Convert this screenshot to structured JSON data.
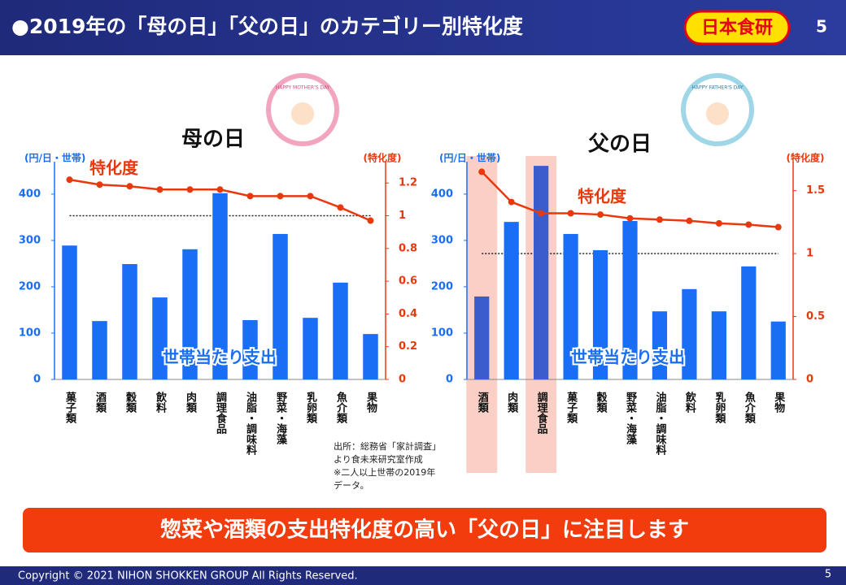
{
  "slide": {
    "title": "●2019年の「母の日」「父の日」のカテゴリー別特化度",
    "logo": "日本食研",
    "page": 5,
    "banner": "惣菜や酒類の支出特化度の高い「父の日」に注目します",
    "source": [
      "出所：総務省「家計調査」",
      "より食未来研究室作成",
      "※二人以上世帯の2019年",
      "データ。"
    ],
    "badges": [
      "HAPPY MOTHER'S DAY",
      "HAPPY FATHER'S DAY"
    ],
    "footer": "Copyright © 2021 NIHON SHOKKEN GROUP All Rights Reserved.",
    "footer_page": 5
  },
  "chart_data": [
    {
      "type": "combo",
      "title": "母の日",
      "y_label": "(円/日・世帯)",
      "y2_label": "(特化度)",
      "categories": [
        "菓子類",
        "酒類",
        "穀類",
        "飲料",
        "肉類",
        "調理食品",
        "油脂・調味料",
        "野菜・海藻",
        "乳卵類",
        "魚介類",
        "果物"
      ],
      "series": [
        {
          "name": "世帯当たり支出",
          "type": "bar",
          "color": "#1a6ef5",
          "values": [
            289,
            126,
            249,
            177,
            281,
            402,
            128,
            314,
            133,
            209,
            98
          ]
        },
        {
          "name": "特化度",
          "type": "line",
          "axis": "y2",
          "color": "#e8380d",
          "values": [
            1.22,
            1.19,
            1.18,
            1.16,
            1.16,
            1.16,
            1.12,
            1.12,
            1.12,
            1.05,
            0.97
          ]
        }
      ],
      "ylim": [
        0,
        470
      ],
      "yticks": [
        0,
        100,
        200,
        300,
        400
      ],
      "y2lim": [
        0,
        1.33
      ],
      "y2ticks": [
        0,
        0.2,
        0.4,
        0.6,
        0.8,
        1,
        1.2
      ],
      "reference_line": {
        "value": 1,
        "axis": "y2"
      }
    },
    {
      "type": "combo",
      "title": "父の日",
      "y_label": "(円/日・世帯)",
      "y2_label": "(特化度)",
      "categories": [
        "酒類",
        "肉類",
        "調理食品",
        "菓子類",
        "穀類",
        "野菜・海藻",
        "油脂・調味料",
        "飲料",
        "乳卵類",
        "魚介類",
        "果物"
      ],
      "series": [
        {
          "name": "世帯当たり支出",
          "type": "bar",
          "color": "#1a6ef5",
          "values": [
            179,
            340,
            461,
            314,
            279,
            342,
            147,
            195,
            147,
            244,
            125
          ]
        },
        {
          "name": "特化度",
          "type": "line",
          "axis": "y2",
          "color": "#e8380d",
          "values": [
            1.65,
            1.41,
            1.32,
            1.32,
            1.31,
            1.28,
            1.27,
            1.26,
            1.24,
            1.23,
            1.21
          ]
        }
      ],
      "ylim": [
        0,
        470
      ],
      "yticks": [
        0,
        100,
        200,
        300,
        400
      ],
      "y2lim": [
        0,
        1.73
      ],
      "y2ticks": [
        0,
        0.5,
        1,
        1.5
      ],
      "reference_line": {
        "value": 1,
        "axis": "y2"
      },
      "highlight_indices": [
        0,
        2
      ],
      "highlight_color": "#f9cfc6",
      "highlight_bar_color": "#3a5ccc"
    }
  ]
}
